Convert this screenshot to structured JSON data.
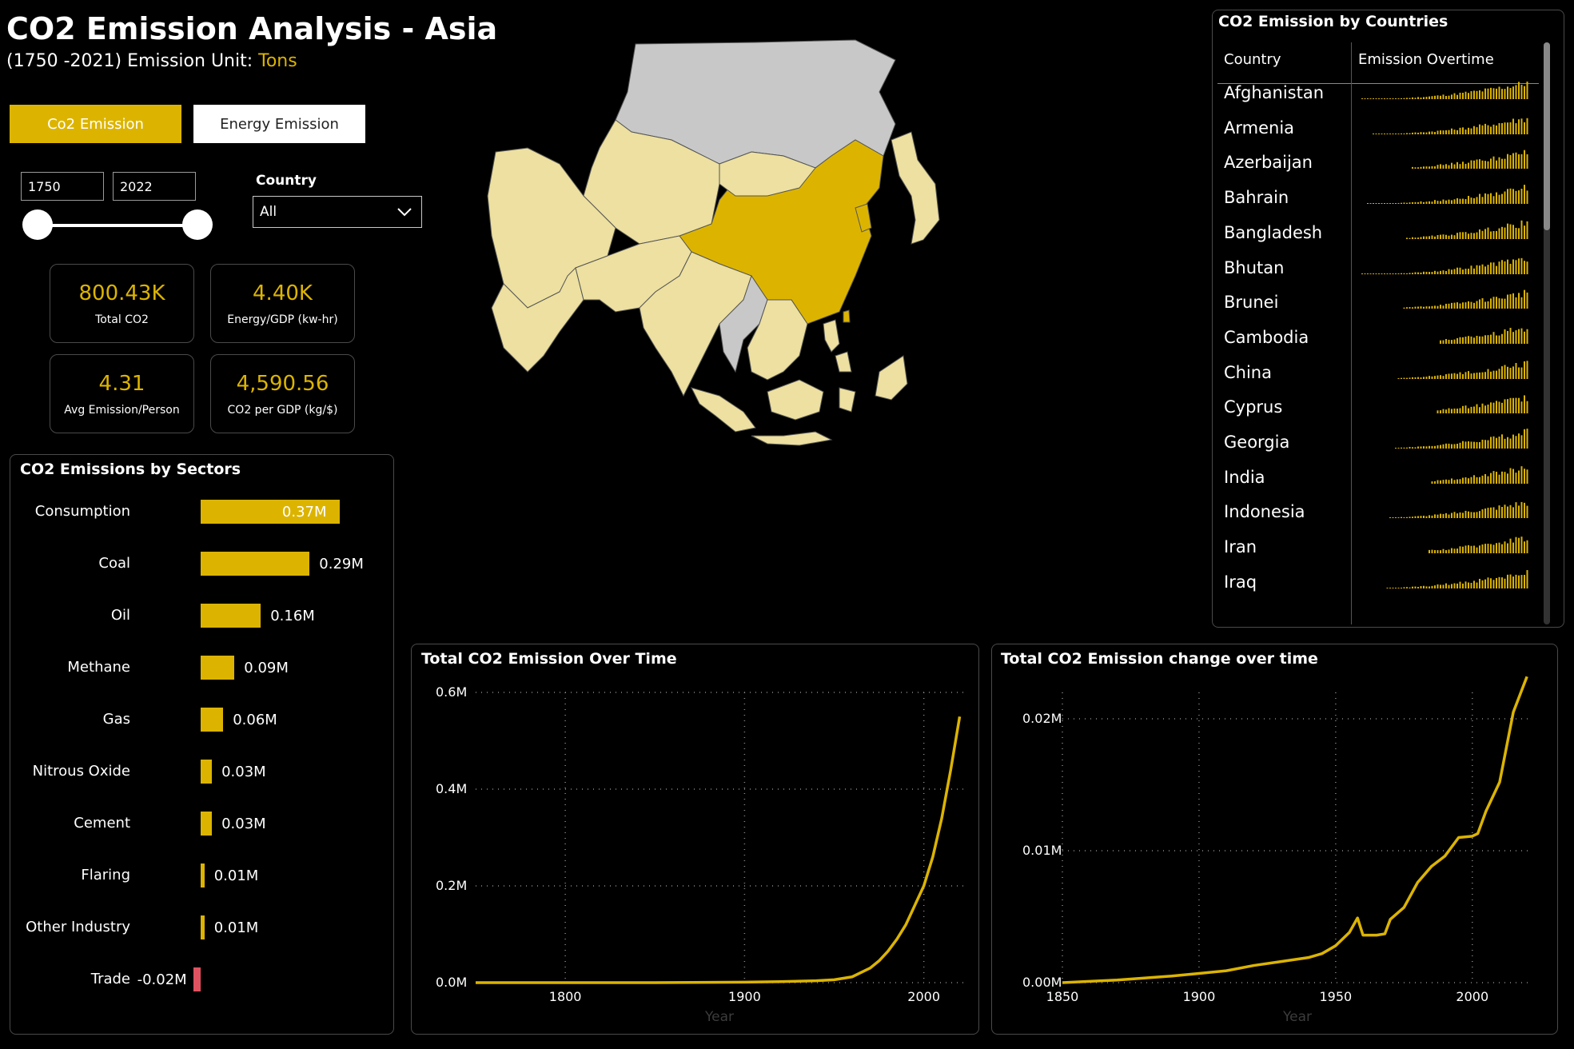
{
  "header": {
    "title": "CO2 Emission Analysis - Asia",
    "subtitle_prefix": "(1750 -2021) Emission Unit: ",
    "unit": "Tons"
  },
  "tabs": {
    "co2": "Co2 Emission",
    "energy": "Energy Emission"
  },
  "filters": {
    "year_start": "1750",
    "year_end": "2022",
    "country_label": "Country",
    "country_value": "All"
  },
  "kpis": [
    {
      "value": "800.43K",
      "label": "Total CO2"
    },
    {
      "value": "4.40K",
      "label": "Energy/GDP (kw-hr)"
    },
    {
      "value": "4.31",
      "label": "Avg Emission/Person"
    },
    {
      "value": "4,590.56",
      "label": "CO2 per GDP (kg/$)"
    }
  ],
  "sectors_panel": {
    "title": "CO2 Emissions by Sectors"
  },
  "sectors": [
    {
      "name": "Consumption",
      "value": 0.37,
      "label": "0.37M"
    },
    {
      "name": "Coal",
      "value": 0.29,
      "label": "0.29M"
    },
    {
      "name": "Oil",
      "value": 0.16,
      "label": "0.16M"
    },
    {
      "name": "Methane",
      "value": 0.09,
      "label": "0.09M"
    },
    {
      "name": "Gas",
      "value": 0.06,
      "label": "0.06M"
    },
    {
      "name": "Nitrous Oxide",
      "value": 0.03,
      "label": "0.03M"
    },
    {
      "name": "Cement",
      "value": 0.03,
      "label": "0.03M"
    },
    {
      "name": "Flaring",
      "value": 0.01,
      "label": "0.01M"
    },
    {
      "name": "Other Industry",
      "value": 0.01,
      "label": "0.01M"
    },
    {
      "name": "Trade",
      "value": -0.02,
      "label": "-0.02M"
    }
  ],
  "countries_panel": {
    "title": "CO2 Emission by Countries",
    "col_country": "Country",
    "col_trend": "Emission Overtime",
    "rows": [
      "Afghanistan",
      "Armenia",
      "Azerbaijan",
      "Bahrain",
      "Bangladesh",
      "Bhutan",
      "Brunei",
      "Cambodia",
      "China",
      "Cyprus",
      "Georgia",
      "India",
      "Indonesia",
      "Iran",
      "Iraq"
    ]
  },
  "map": {
    "highlight_color": "#dcb400",
    "light_color": "#ede0a0",
    "nodata_color": "#c8c8c8"
  },
  "colors": {
    "accent": "#dcb400",
    "negative": "#e05260"
  },
  "chart_data": [
    {
      "type": "bar",
      "title": "CO2 Emissions by Sectors",
      "orientation": "horizontal",
      "categories": [
        "Consumption",
        "Coal",
        "Oil",
        "Methane",
        "Gas",
        "Nitrous Oxide",
        "Cement",
        "Flaring",
        "Other Industry",
        "Trade"
      ],
      "values": [
        0.37,
        0.29,
        0.16,
        0.09,
        0.06,
        0.03,
        0.03,
        0.01,
        0.01,
        -0.02
      ],
      "value_unit": "M"
    },
    {
      "type": "line",
      "title": "Total CO2 Emission Over Time",
      "xlabel": "Year",
      "ylabel": "",
      "xlim": [
        1750,
        2022
      ],
      "ylim": [
        0,
        0.6
      ],
      "xticks": [
        "1800",
        "1900",
        "2000"
      ],
      "yticks": [
        "0.6M",
        "0.4M",
        "0.2M",
        "0.0M"
      ],
      "grid": true,
      "x": [
        1750,
        1800,
        1850,
        1900,
        1920,
        1940,
        1950,
        1960,
        1970,
        1975,
        1980,
        1985,
        1990,
        1995,
        2000,
        2005,
        2010,
        2015,
        2020
      ],
      "y": [
        0.0,
        0.0,
        0.0,
        0.001,
        0.002,
        0.004,
        0.006,
        0.012,
        0.03,
        0.045,
        0.065,
        0.09,
        0.12,
        0.16,
        0.2,
        0.26,
        0.34,
        0.44,
        0.55
      ]
    },
    {
      "type": "line",
      "title": "Total CO2 Emission change over time",
      "xlabel": "Year",
      "ylabel": "",
      "xlim": [
        1850,
        2022
      ],
      "ylim": [
        0,
        0.022
      ],
      "xticks": [
        "1850",
        "1900",
        "1950",
        "2000"
      ],
      "yticks": [
        "0.02M",
        "0.01M",
        "0.00M"
      ],
      "grid": true,
      "x": [
        1850,
        1870,
        1890,
        1900,
        1910,
        1920,
        1930,
        1940,
        1945,
        1950,
        1955,
        1958,
        1960,
        1965,
        1968,
        1970,
        1975,
        1980,
        1985,
        1990,
        1995,
        2000,
        2002,
        2005,
        2010,
        2015,
        2020
      ],
      "y": [
        0.0,
        0.0002,
        0.0005,
        0.0007,
        0.0009,
        0.0013,
        0.0016,
        0.0019,
        0.0022,
        0.0028,
        0.0038,
        0.0049,
        0.0036,
        0.0036,
        0.0037,
        0.0048,
        0.0057,
        0.0076,
        0.0088,
        0.0096,
        0.011,
        0.0111,
        0.0113,
        0.013,
        0.0152,
        0.0205,
        0.0232
      ]
    }
  ]
}
